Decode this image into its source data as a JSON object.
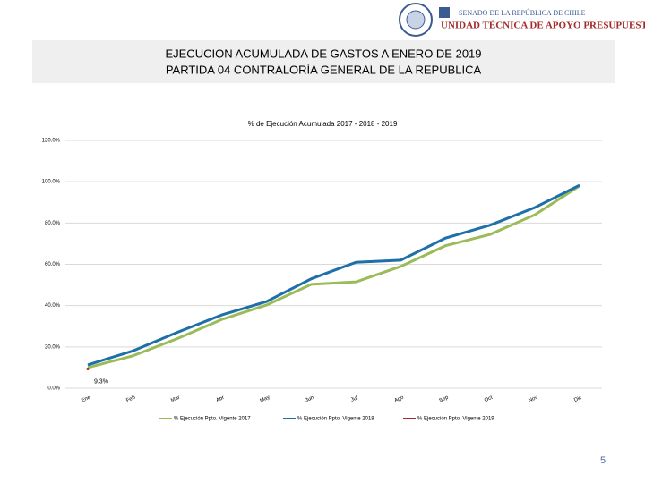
{
  "header": {
    "line1": "SENADO DE LA REPÚBLICA DE CHILE",
    "line2": "UNIDAD TÉCNICA DE APOYO PRESUPUESTARIO"
  },
  "slide_title": [
    "EJECUCION ACUMULADA DE GASTOS A ENERO DE 2019",
    "PARTIDA 04 CONTRALORÍA GENERAL DE LA REPÚBLICA"
  ],
  "page_number": "5",
  "chart_data": {
    "type": "line",
    "title": "% de Ejecución Acumulada 2017 - 2018 - 2019",
    "categories": [
      "Ene",
      "Feb",
      "Mar",
      "Abr",
      "May",
      "Jun",
      "Jul",
      "Ago",
      "Sep",
      "Oct",
      "Nov",
      "Dic"
    ],
    "series": [
      {
        "name": "% Ejecución Ppto. Vigente 2017",
        "color": "#9bbb59",
        "values": [
          10,
          15.6,
          24,
          33.3,
          40.3,
          50.3,
          51.5,
          59,
          69,
          74.5,
          84,
          98
        ]
      },
      {
        "name": "% Ejecución Ppto. Vigente 2018",
        "color": "#1f6fa8",
        "values": [
          11.3,
          18,
          27,
          35.5,
          42,
          53,
          61,
          62,
          72.7,
          79,
          87.5,
          98.3
        ]
      },
      {
        "name": "% Ejecución Ppto. Vigente 2019",
        "color": "#a52a2a",
        "values": [
          9.3,
          null,
          null,
          null,
          null,
          null,
          null,
          null,
          null,
          null,
          null,
          null
        ],
        "value_labels": [
          "9.3%",
          null,
          null,
          null,
          null,
          null,
          null,
          null,
          null,
          null,
          null,
          null
        ]
      }
    ],
    "ylim": [
      0,
      120
    ],
    "yticks": [
      {
        "value": 0,
        "label": "0.0%"
      },
      {
        "value": 20,
        "label": "20.0%"
      },
      {
        "value": 40,
        "label": "40.0%"
      },
      {
        "value": 60,
        "label": "60.0%"
      },
      {
        "value": 80,
        "label": "80.0%"
      },
      {
        "value": 100,
        "label": "100.0%"
      },
      {
        "value": 120,
        "label": "120.0%"
      }
    ],
    "grid": true,
    "legend": "bottom"
  }
}
